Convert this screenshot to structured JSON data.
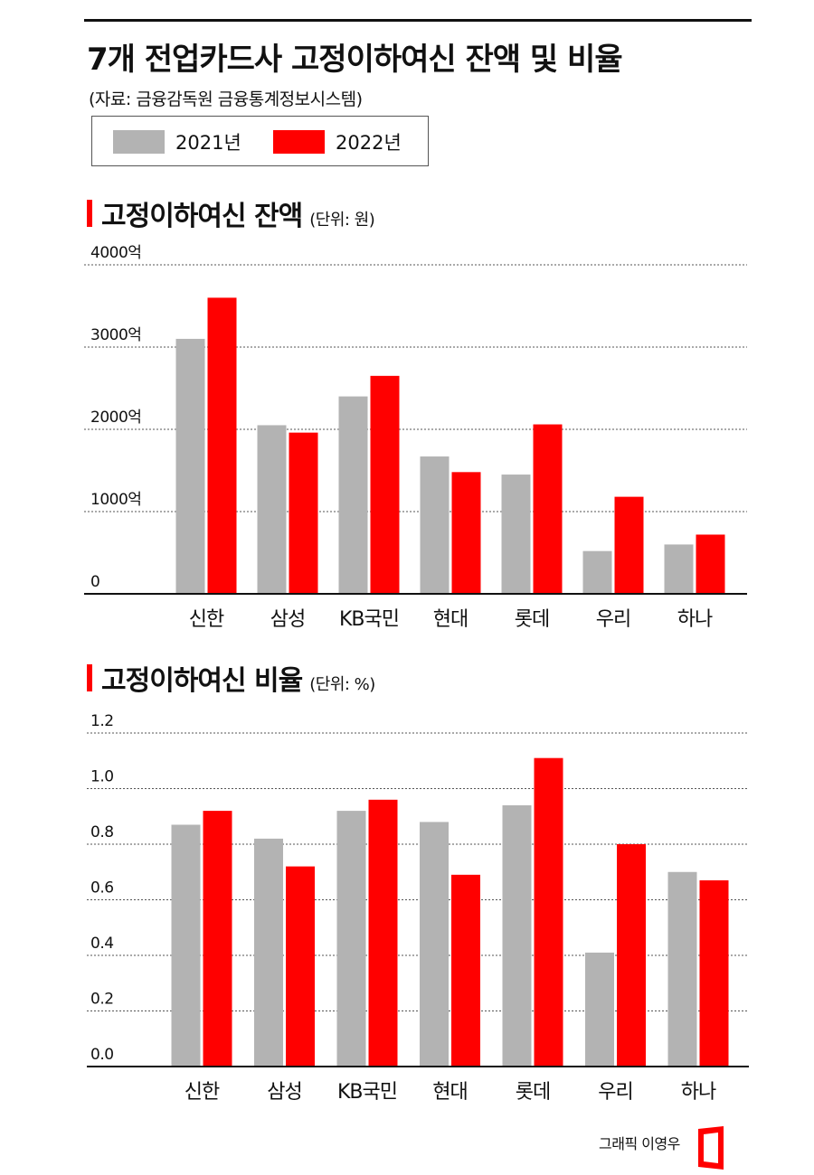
{
  "header": {
    "title": "7개 전업카드사 고정이하여신 잔액 및 비율",
    "source": "(자료: 금융감독원 금융통계정보시스템)"
  },
  "legend": {
    "items": [
      {
        "label": "2021년",
        "color": "#b3b3b3"
      },
      {
        "label": "2022년",
        "color": "#ff0000"
      }
    ]
  },
  "colors": {
    "accent": "#ff0000",
    "gray": "#b3b3b3",
    "axis": "#111111"
  },
  "credit": {
    "text": "그래픽 이영우"
  },
  "chart_data": [
    {
      "type": "bar",
      "title": "고정이하여신 잔액",
      "unit": "(단위: 원)",
      "categories": [
        "신한",
        "삼성",
        "KB국민",
        "현대",
        "롯데",
        "우리",
        "하나"
      ],
      "series": [
        {
          "name": "2021년",
          "values": [
            3100,
            2050,
            2400,
            1670,
            1450,
            520,
            600
          ]
        },
        {
          "name": "2022년",
          "values": [
            3600,
            1960,
            2650,
            1480,
            2060,
            1180,
            720
          ]
        }
      ],
      "ylim": [
        0,
        4000
      ],
      "yticks": [
        0,
        1000,
        2000,
        3000,
        4000
      ],
      "ytick_labels": [
        "0",
        "1000억",
        "2000억",
        "3000억",
        "4000억"
      ],
      "grid": true
    },
    {
      "type": "bar",
      "title": "고정이하여신 비율",
      "unit": "(단위: %)",
      "categories": [
        "신한",
        "삼성",
        "KB국민",
        "현대",
        "롯데",
        "우리",
        "하나"
      ],
      "series": [
        {
          "name": "2021년",
          "values": [
            0.87,
            0.82,
            0.92,
            0.88,
            0.94,
            0.41,
            0.7
          ]
        },
        {
          "name": "2022년",
          "values": [
            0.92,
            0.72,
            0.96,
            0.69,
            1.11,
            0.8,
            0.67
          ]
        }
      ],
      "ylim": [
        0,
        1.2
      ],
      "yticks": [
        0,
        0.2,
        0.4,
        0.6,
        0.8,
        1.0,
        1.2
      ],
      "ytick_labels": [
        "0.0",
        "0.2",
        "0.4",
        "0.6",
        "0.8",
        "1.0",
        "1.2"
      ],
      "grid": true
    }
  ]
}
